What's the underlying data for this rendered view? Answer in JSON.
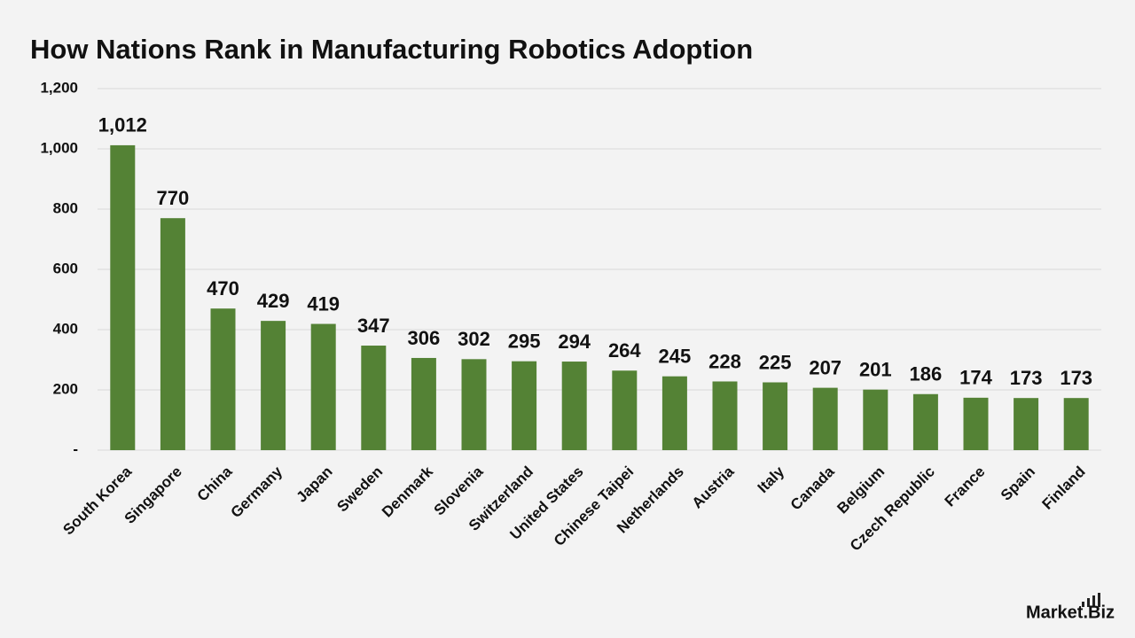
{
  "chart_data": {
    "type": "bar",
    "title": "How Nations Rank in Manufacturing Robotics Adoption",
    "categories": [
      "South Korea",
      "Singapore",
      "China",
      "Germany",
      "Japan",
      "Sweden",
      "Denmark",
      "Slovenia",
      "Switzerland",
      "United States",
      "Chinese Taipei",
      "Netherlands",
      "Austria",
      "Italy",
      "Canada",
      "Belgium",
      "Czech Republic",
      "France",
      "Spain",
      "Finland"
    ],
    "values": [
      1012,
      770,
      470,
      429,
      419,
      347,
      306,
      302,
      295,
      294,
      264,
      245,
      228,
      225,
      207,
      201,
      186,
      174,
      173,
      173
    ],
    "value_labels": [
      "1,012",
      "770",
      "470",
      "429",
      "419",
      "347",
      "306",
      "302",
      "295",
      "294",
      "264",
      "245",
      "228",
      "225",
      "207",
      "201",
      "186",
      "174",
      "173",
      "173"
    ],
    "color": "#548235",
    "ylim": [
      0,
      1200
    ],
    "yticks": [
      {
        "value": 0,
        "label": "-"
      },
      200,
      400,
      600,
      800,
      {
        "value": 1000,
        "label": "1,000"
      },
      {
        "value": 1200,
        "label": "1,200"
      }
    ],
    "grid": true
  },
  "brand": "Market.Biz"
}
